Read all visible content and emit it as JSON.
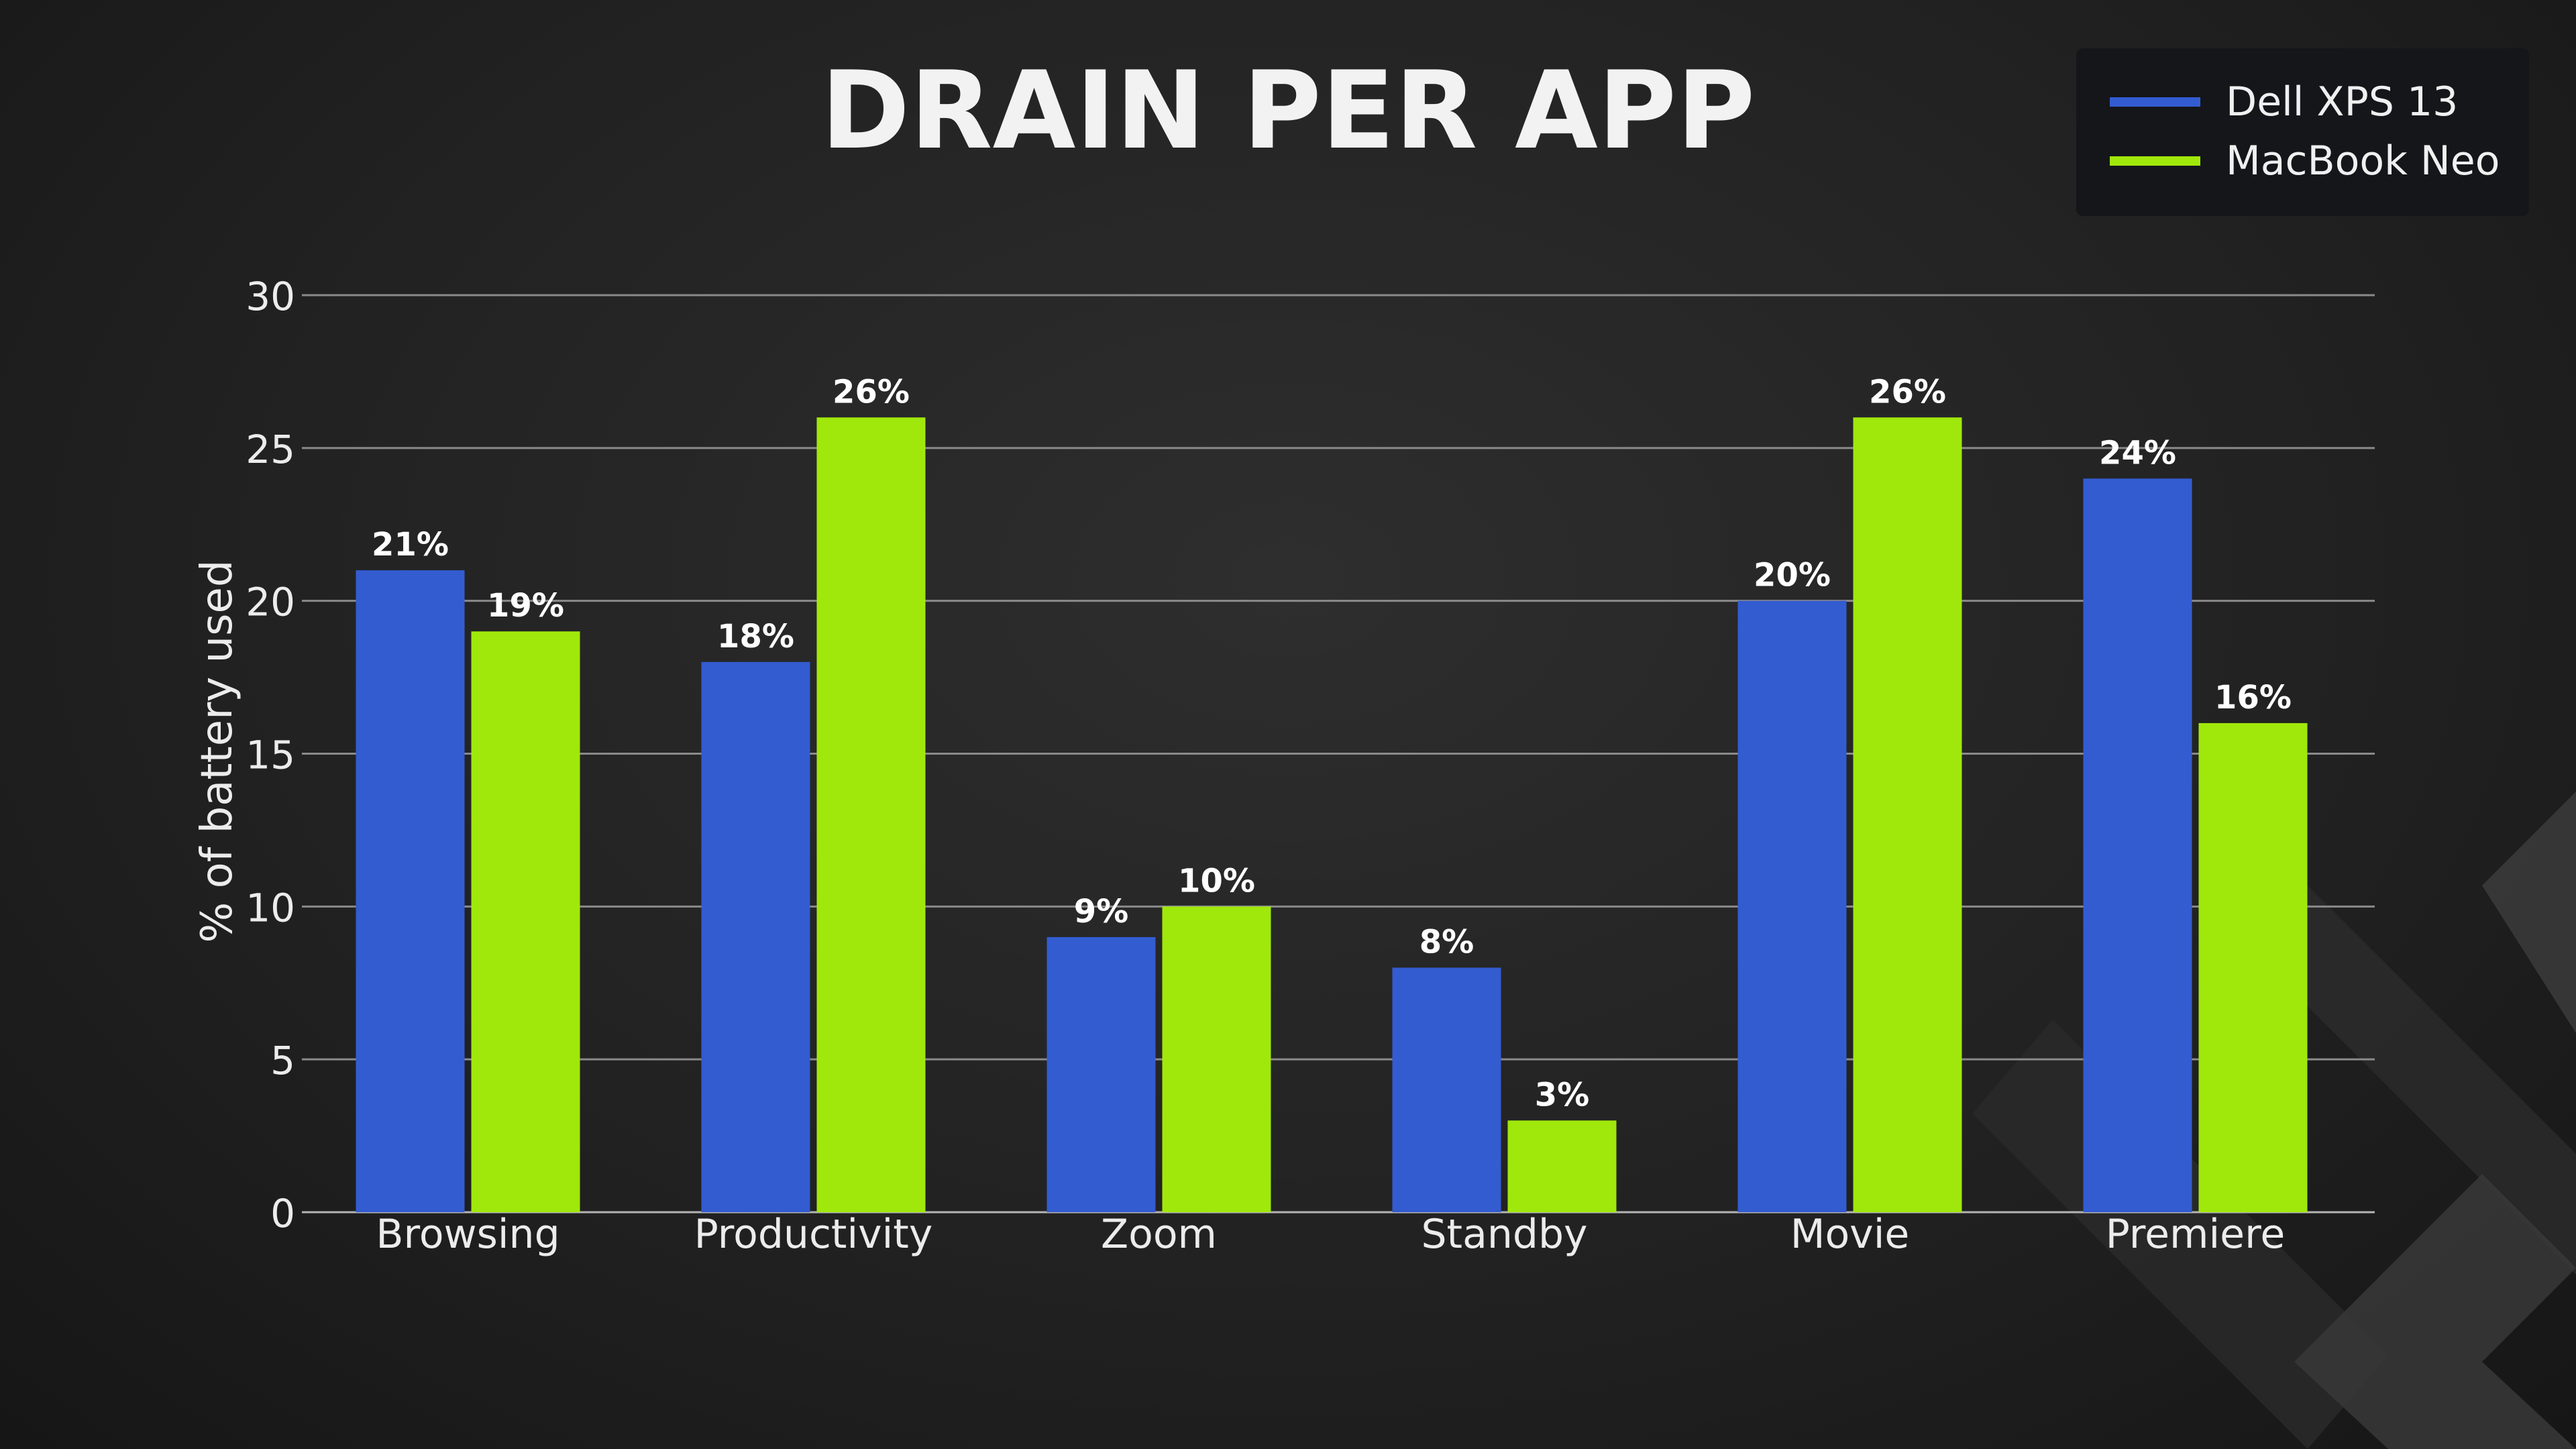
{
  "colors": {
    "series_a": "#335cd1",
    "series_b": "#a0e80c",
    "grid": "#8a8a8a",
    "text": "#ececec",
    "legend_bg": "#15161a"
  },
  "chart_data": {
    "type": "bar",
    "title": "DRAIN PER APP",
    "xlabel": "",
    "ylabel": "% of battery used",
    "categories": [
      "Browsing",
      "Productivity",
      "Zoom",
      "Standby",
      "Movie",
      "Premiere"
    ],
    "series": [
      {
        "name": "Dell XPS 13",
        "values": [
          21,
          18,
          9,
          8,
          20,
          24
        ],
        "labels": [
          "21%",
          "18%",
          "9%",
          "8%",
          "20%",
          "24%"
        ]
      },
      {
        "name": "MacBook Neo",
        "values": [
          19,
          26,
          10,
          3,
          26,
          16
        ],
        "labels": [
          "19%",
          "26%",
          "10%",
          "3%",
          "26%",
          "16%"
        ]
      }
    ],
    "ylim": [
      0,
      30
    ],
    "yticks": [
      0,
      5,
      10,
      15,
      20,
      25,
      30
    ],
    "grid": true,
    "legend_position": "top-right"
  }
}
